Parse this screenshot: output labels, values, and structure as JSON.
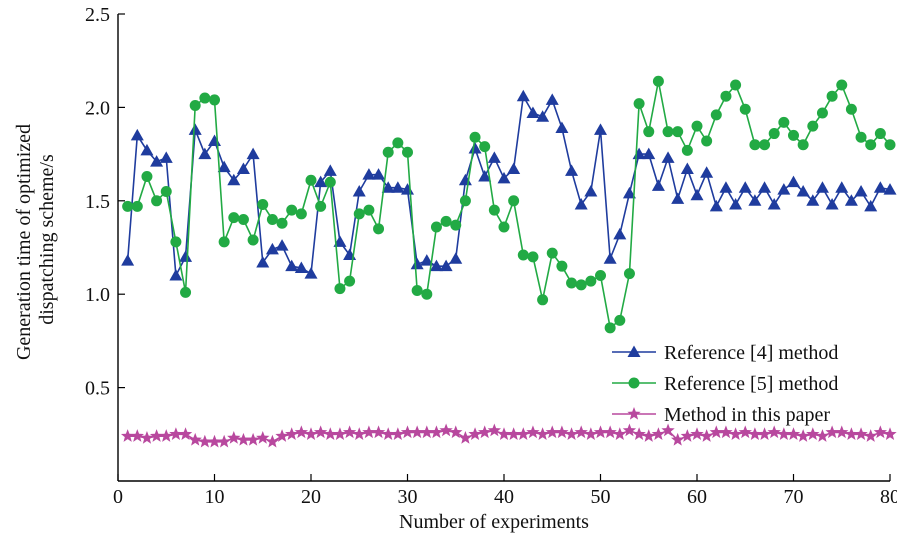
{
  "chart_data": {
    "type": "line",
    "title": "",
    "xlabel": "Number of experiments",
    "ylabel_lines": [
      "Generation time of optimized",
      "dispatching scheme/s"
    ],
    "xlim": [
      0,
      80
    ],
    "ylim": [
      0,
      2.5
    ],
    "xticks": [
      0,
      10,
      20,
      30,
      40,
      50,
      60,
      70,
      80
    ],
    "xtick_labels": [
      "0",
      "10",
      "20",
      "30",
      "40",
      "50",
      "60",
      "70",
      "80"
    ],
    "yticks": [
      0.5,
      1.0,
      1.5,
      2.0,
      2.5
    ],
    "ytick_labels": [
      "0.5",
      "1.0",
      "1.5",
      "2.0",
      "2.5"
    ],
    "grid": false,
    "legend_position": "bottom-right",
    "x": [
      1,
      2,
      3,
      4,
      5,
      6,
      7,
      8,
      9,
      10,
      11,
      12,
      13,
      14,
      15,
      16,
      17,
      18,
      19,
      20,
      21,
      22,
      23,
      24,
      25,
      26,
      27,
      28,
      29,
      30,
      31,
      32,
      33,
      34,
      35,
      36,
      37,
      38,
      39,
      40,
      41,
      42,
      43,
      44,
      45,
      46,
      47,
      48,
      49,
      50,
      51,
      52,
      53,
      54,
      55,
      56,
      57,
      58,
      59,
      60,
      61,
      62,
      63,
      64,
      65,
      66,
      67,
      68,
      69,
      70,
      71,
      72,
      73,
      74,
      75,
      76,
      77,
      78,
      79,
      80
    ],
    "series": [
      {
        "name": "Reference [4] method",
        "color": "#1f3c9e",
        "marker": "triangle",
        "values": [
          1.18,
          1.85,
          1.77,
          1.71,
          1.73,
          1.1,
          1.2,
          1.88,
          1.75,
          1.82,
          1.68,
          1.61,
          1.67,
          1.75,
          1.17,
          1.24,
          1.26,
          1.15,
          1.14,
          1.11,
          1.6,
          1.66,
          1.28,
          1.21,
          1.55,
          1.64,
          1.64,
          1.57,
          1.57,
          1.56,
          1.16,
          1.18,
          1.15,
          1.15,
          1.19,
          1.61,
          1.78,
          1.63,
          1.73,
          1.62,
          1.67,
          2.06,
          1.97,
          1.95,
          2.04,
          1.89,
          1.66,
          1.48,
          1.55,
          1.88,
          1.19,
          1.32,
          1.54,
          1.75,
          1.75,
          1.58,
          1.73,
          1.51,
          1.67,
          1.53,
          1.65,
          1.47,
          1.57,
          1.48,
          1.57,
          1.5,
          1.57,
          1.48,
          1.56,
          1.6,
          1.55,
          1.5,
          1.57,
          1.48,
          1.57,
          1.5,
          1.55,
          1.47,
          1.57,
          1.56
        ]
      },
      {
        "name": "Reference [5] method",
        "color": "#22aa44",
        "marker": "circle",
        "values": [
          1.47,
          1.47,
          1.63,
          1.5,
          1.55,
          1.28,
          1.01,
          2.01,
          2.05,
          2.04,
          1.28,
          1.41,
          1.4,
          1.29,
          1.48,
          1.4,
          1.38,
          1.45,
          1.43,
          1.61,
          1.47,
          1.6,
          1.03,
          1.07,
          1.43,
          1.45,
          1.35,
          1.76,
          1.81,
          1.76,
          1.02,
          1.0,
          1.36,
          1.39,
          1.37,
          1.5,
          1.84,
          1.79,
          1.45,
          1.36,
          1.5,
          1.21,
          1.2,
          0.97,
          1.22,
          1.15,
          1.06,
          1.05,
          1.07,
          1.1,
          0.82,
          0.86,
          1.11,
          2.02,
          1.87,
          2.14,
          1.87,
          1.87,
          1.77,
          1.9,
          1.82,
          1.96,
          2.06,
          2.12,
          1.99,
          1.8,
          1.8,
          1.86,
          1.92,
          1.85,
          1.8,
          1.9,
          1.97,
          2.06,
          2.12,
          1.99,
          1.84,
          1.8,
          1.86,
          1.8
        ]
      },
      {
        "name": "Method in this paper",
        "color": "#b8489e",
        "marker": "star",
        "values": [
          0.24,
          0.24,
          0.23,
          0.24,
          0.24,
          0.25,
          0.25,
          0.22,
          0.21,
          0.21,
          0.21,
          0.23,
          0.22,
          0.22,
          0.23,
          0.21,
          0.24,
          0.25,
          0.26,
          0.25,
          0.26,
          0.25,
          0.25,
          0.26,
          0.25,
          0.26,
          0.26,
          0.25,
          0.25,
          0.26,
          0.26,
          0.26,
          0.26,
          0.27,
          0.26,
          0.23,
          0.25,
          0.26,
          0.27,
          0.25,
          0.25,
          0.25,
          0.26,
          0.25,
          0.26,
          0.26,
          0.25,
          0.26,
          0.25,
          0.26,
          0.26,
          0.25,
          0.27,
          0.25,
          0.24,
          0.25,
          0.27,
          0.22,
          0.24,
          0.25,
          0.24,
          0.26,
          0.26,
          0.25,
          0.26,
          0.25,
          0.25,
          0.26,
          0.25,
          0.25,
          0.24,
          0.25,
          0.24,
          0.26,
          0.26,
          0.25,
          0.25,
          0.24,
          0.26,
          0.25
        ]
      }
    ]
  }
}
